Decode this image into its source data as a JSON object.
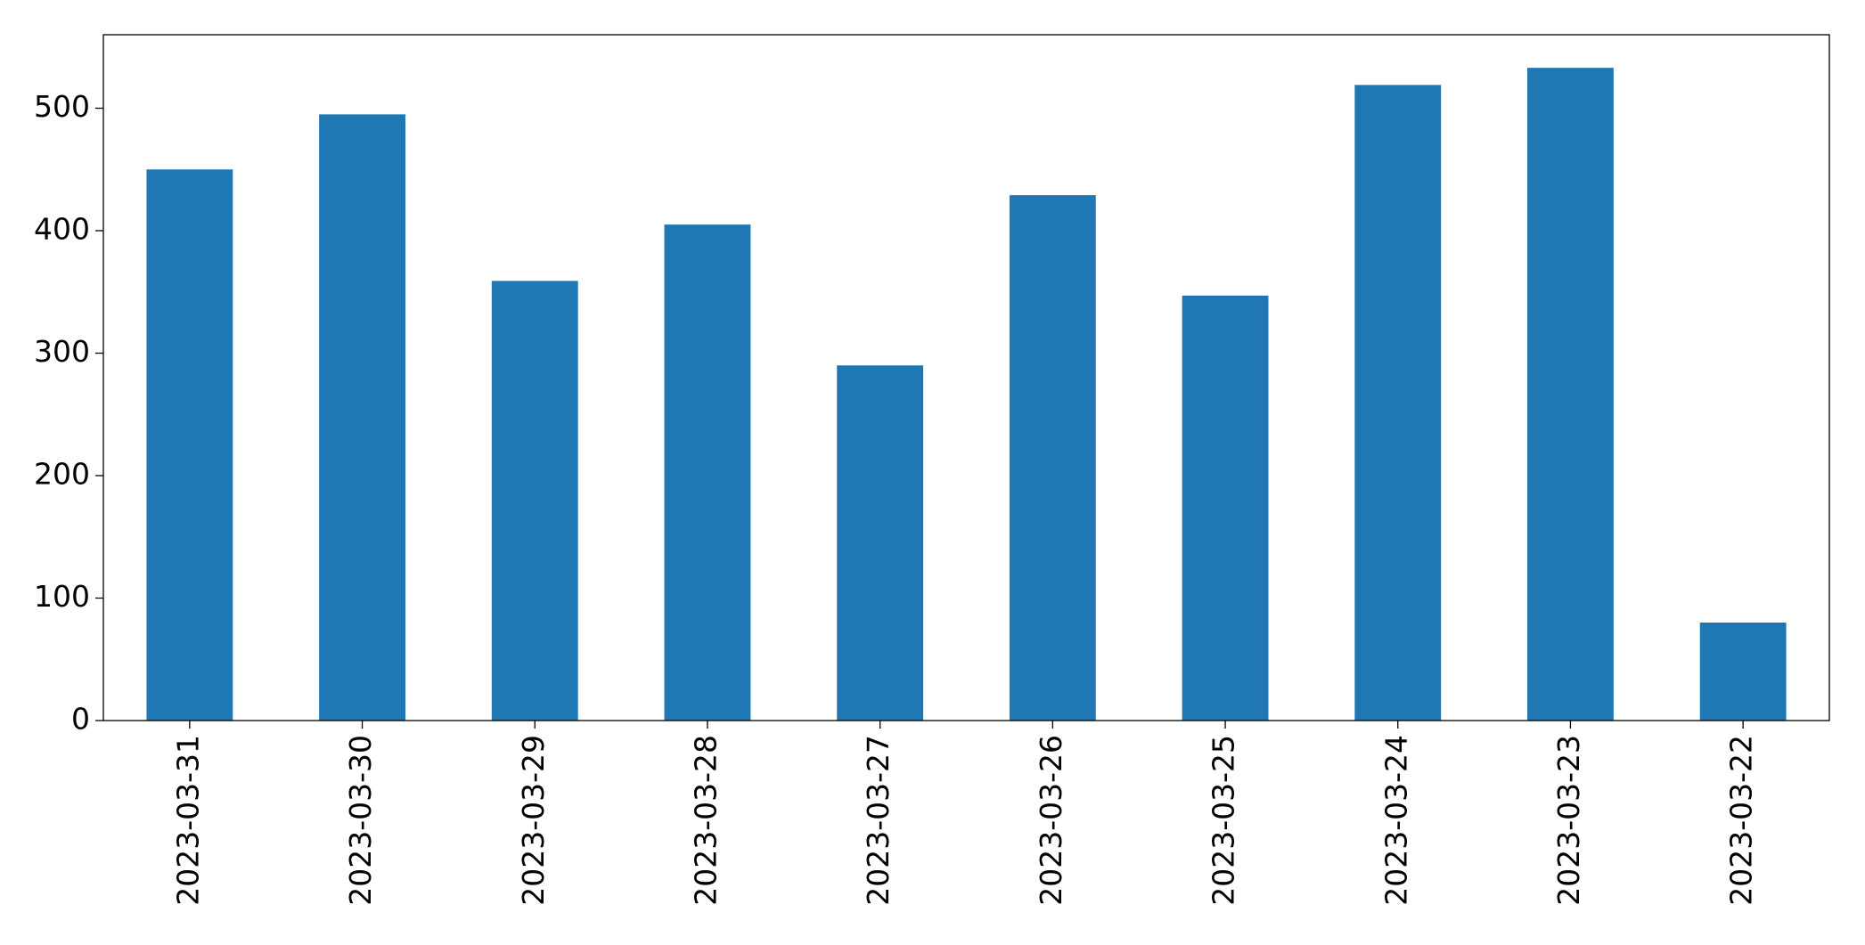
{
  "chart_data": {
    "type": "bar",
    "categories": [
      "2023-03-31",
      "2023-03-30",
      "2023-03-29",
      "2023-03-28",
      "2023-03-27",
      "2023-03-26",
      "2023-03-25",
      "2023-03-24",
      "2023-03-23",
      "2023-03-22"
    ],
    "values": [
      450,
      495,
      359,
      405,
      290,
      429,
      347,
      519,
      533,
      80
    ],
    "color": "#1f77b4",
    "ylim": [
      0,
      560
    ],
    "yticks": [
      0,
      100,
      200,
      300,
      400,
      500
    ],
    "grid": false
  }
}
